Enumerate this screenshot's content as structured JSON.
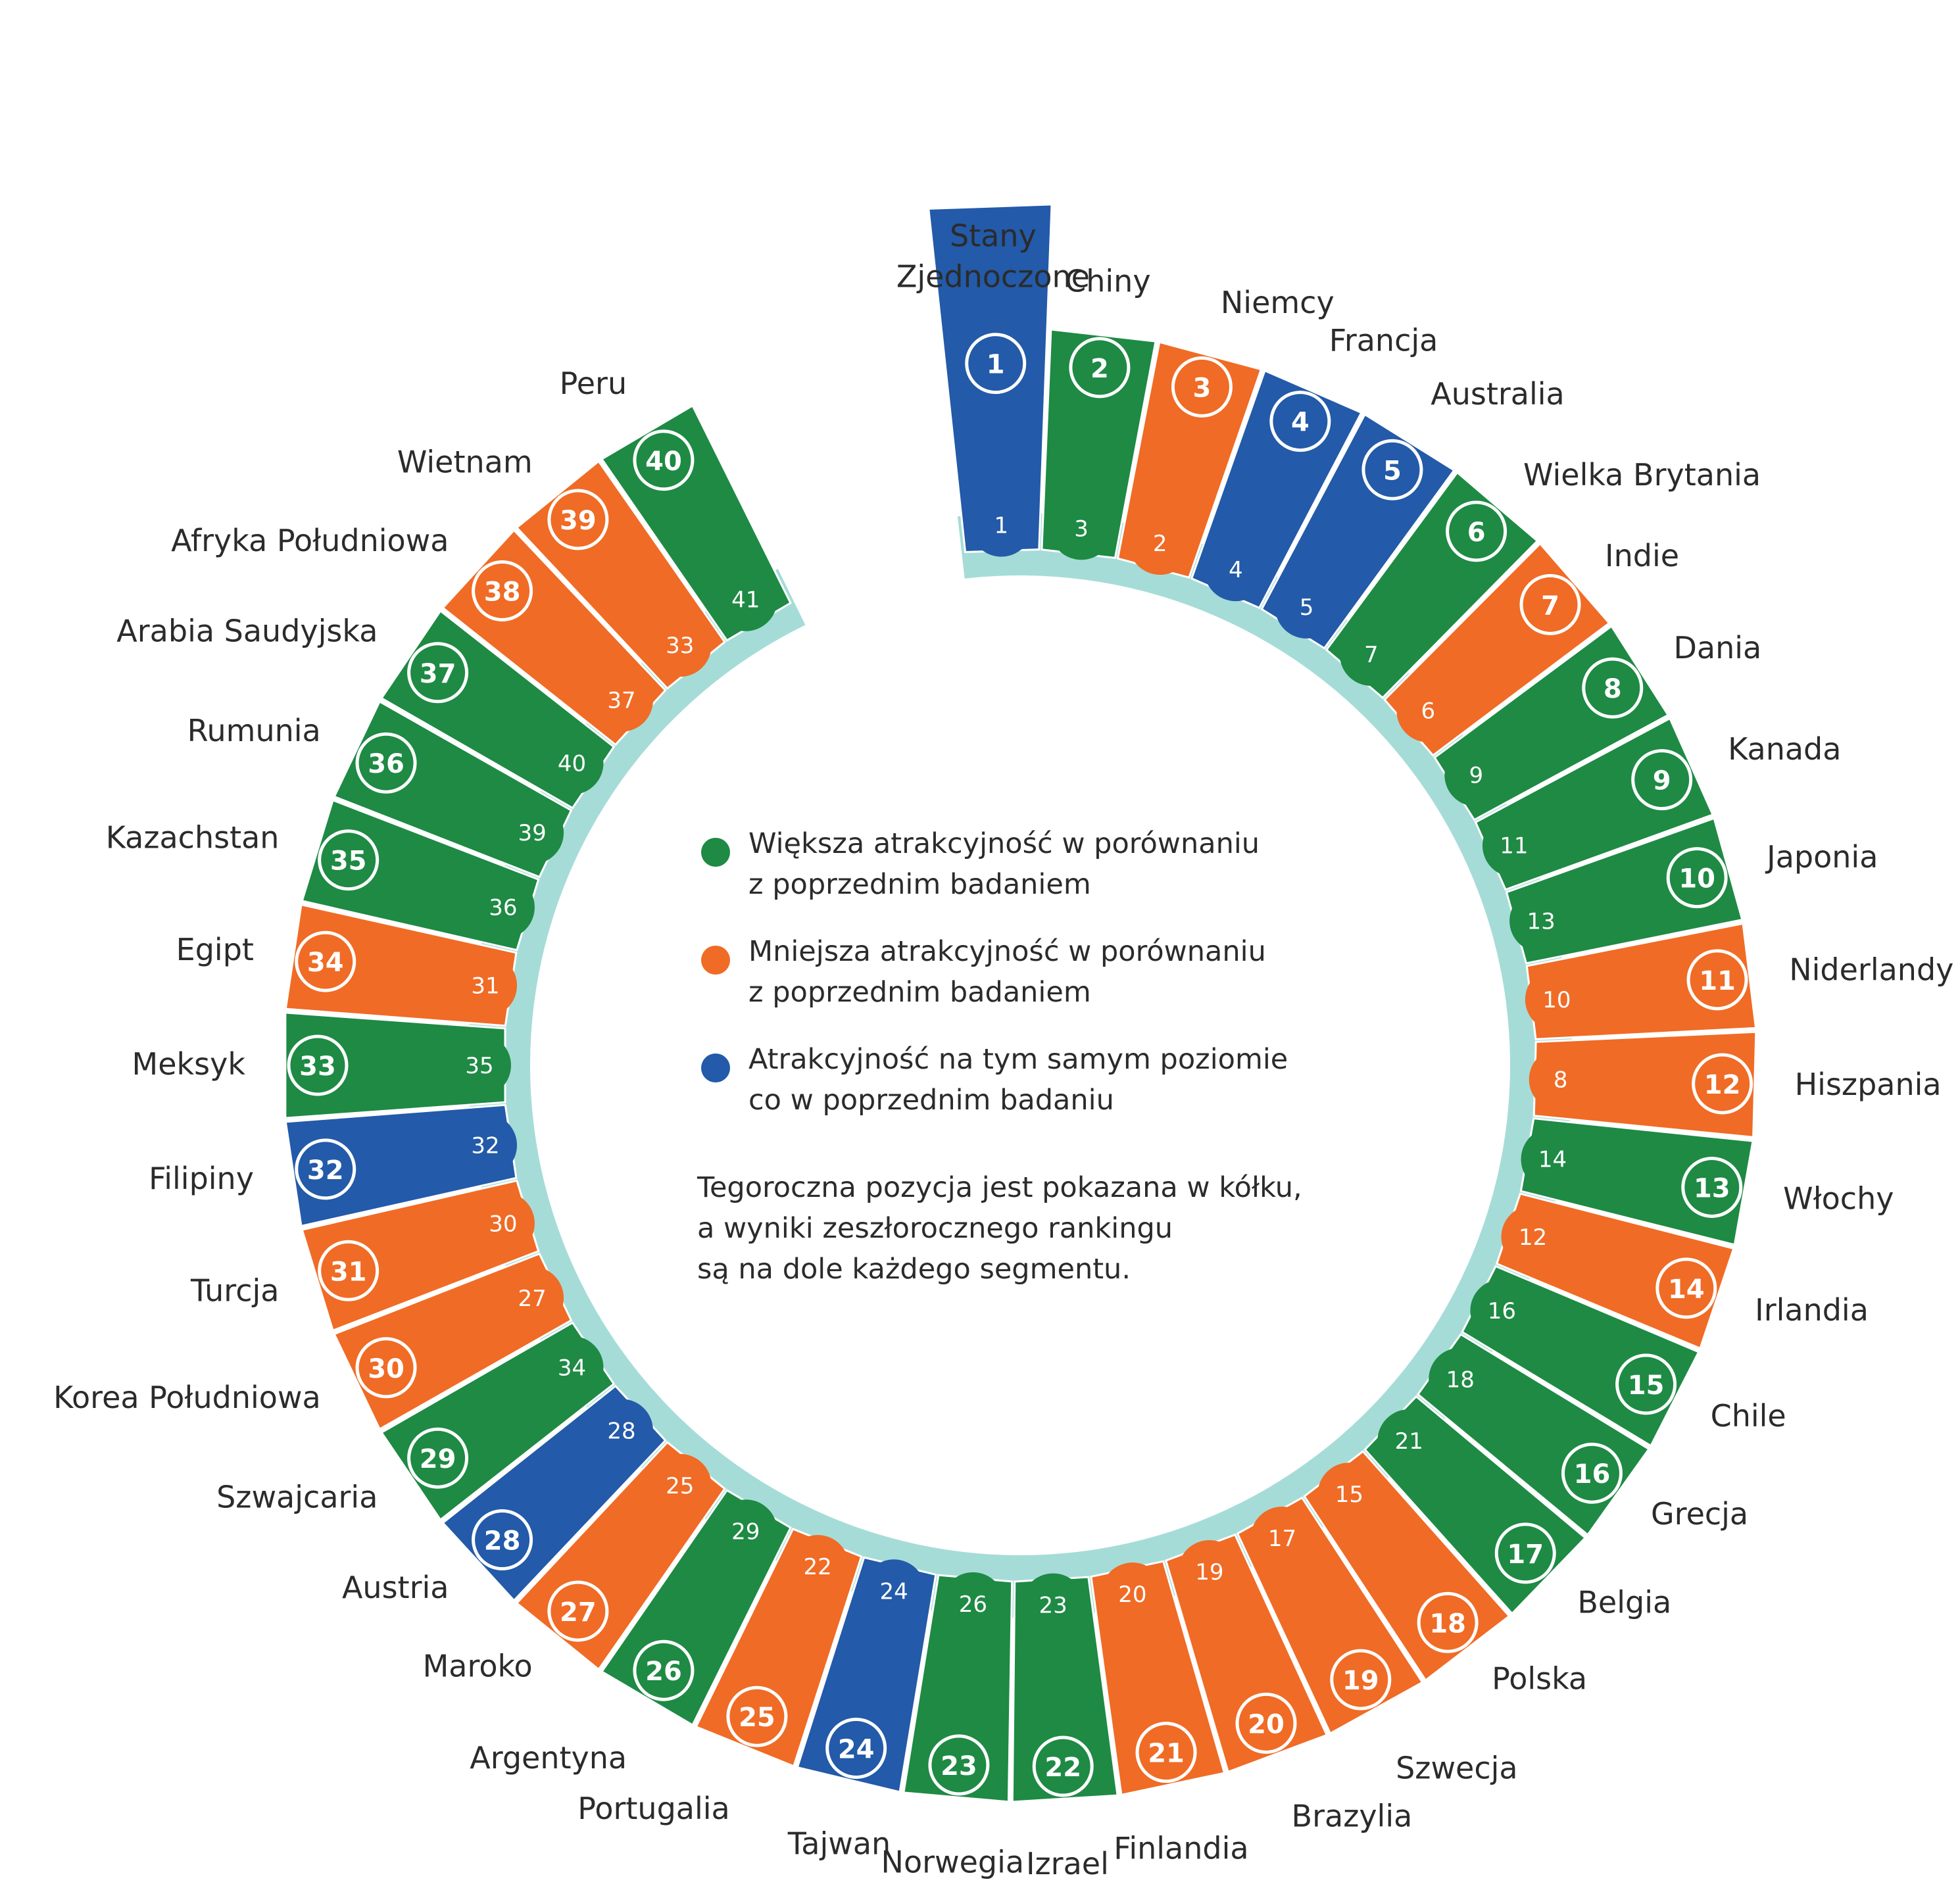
{
  "colors": {
    "up": "#1e8a44",
    "down": "#f06b25",
    "same": "#235aa9",
    "ring": "#a6dcd8",
    "text": "#2b2b2b"
  },
  "legend": {
    "up": "Większa atrakcyjność w porównaniu\nz poprzednim badaniem",
    "down": "Mniejsza atrakcyjność w porównaniu\nz poprzednim badaniem",
    "same": "Atrakcyjność na tym samym poziomie\nco w poprzednim badaniu"
  },
  "note": "Tegoroczna pozycja jest pokazana w kółku,\na wyniki zeszłorocznego rankingu\nsą na dole każdego segmentu.",
  "chart_data": {
    "type": "radial-bar",
    "series_fields": [
      "country",
      "rank_current",
      "rank_previous",
      "trend"
    ],
    "items": [
      {
        "country": "Stany\nZjednoczone",
        "rank": "1",
        "prev": "1",
        "trend": "same"
      },
      {
        "country": "Chiny",
        "rank": "2",
        "prev": "3",
        "trend": "up"
      },
      {
        "country": "Niemcy",
        "rank": "3",
        "prev": "2",
        "trend": "down"
      },
      {
        "country": "Francja",
        "rank": "4",
        "prev": "4",
        "trend": "same"
      },
      {
        "country": "Australia",
        "rank": "5",
        "prev": "5",
        "trend": "same"
      },
      {
        "country": "Wielka Brytania",
        "rank": "6",
        "prev": "7",
        "trend": "up"
      },
      {
        "country": "Indie",
        "rank": "7",
        "prev": "6",
        "trend": "down"
      },
      {
        "country": "Dania",
        "rank": "8",
        "prev": "9",
        "trend": "up"
      },
      {
        "country": "Kanada",
        "rank": "9",
        "prev": "11",
        "trend": "up"
      },
      {
        "country": "Japonia",
        "rank": "10",
        "prev": "13",
        "trend": "up"
      },
      {
        "country": "Niderlandy",
        "rank": "11",
        "prev": "10",
        "trend": "down"
      },
      {
        "country": "Hiszpania",
        "rank": "12",
        "prev": "8",
        "trend": "down"
      },
      {
        "country": "Włochy",
        "rank": "13",
        "prev": "14",
        "trend": "up"
      },
      {
        "country": "Irlandia",
        "rank": "14",
        "prev": "12",
        "trend": "down"
      },
      {
        "country": "Chile",
        "rank": "15",
        "prev": "16",
        "trend": "up"
      },
      {
        "country": "Grecja",
        "rank": "16",
        "prev": "18",
        "trend": "up"
      },
      {
        "country": "Belgia",
        "rank": "17",
        "prev": "21",
        "trend": "up"
      },
      {
        "country": "Polska",
        "rank": "18",
        "prev": "15",
        "trend": "down"
      },
      {
        "country": "Szwecja",
        "rank": "19",
        "prev": "17",
        "trend": "down"
      },
      {
        "country": "Brazylia",
        "rank": "20",
        "prev": "19",
        "trend": "down"
      },
      {
        "country": "Finlandia",
        "rank": "21",
        "prev": "20",
        "trend": "down"
      },
      {
        "country": "Izrael",
        "rank": "22",
        "prev": "23",
        "trend": "up"
      },
      {
        "country": "Norwegia",
        "rank": "23",
        "prev": "26",
        "trend": "up"
      },
      {
        "country": "Tajwan",
        "rank": "24",
        "prev": "24",
        "trend": "same"
      },
      {
        "country": "Portugalia",
        "rank": "25",
        "prev": "22",
        "trend": "down"
      },
      {
        "country": "Argentyna",
        "rank": "26",
        "prev": "29",
        "trend": "up"
      },
      {
        "country": "Maroko",
        "rank": "27",
        "prev": "25",
        "trend": "down"
      },
      {
        "country": "Austria",
        "rank": "28",
        "prev": "28",
        "trend": "same"
      },
      {
        "country": "Szwajcaria",
        "rank": "29",
        "prev": "34",
        "trend": "up"
      },
      {
        "country": "Korea Południowa",
        "rank": "30",
        "prev": "27",
        "trend": "down"
      },
      {
        "country": "Turcja",
        "rank": "31",
        "prev": "30",
        "trend": "down"
      },
      {
        "country": "Filipiny",
        "rank": "32",
        "prev": "32",
        "trend": "same"
      },
      {
        "country": "Meksyk",
        "rank": "33",
        "prev": "35",
        "trend": "up"
      },
      {
        "country": "Egipt",
        "rank": "34",
        "prev": "31",
        "trend": "down"
      },
      {
        "country": "Kazachstan",
        "rank": "35",
        "prev": "36",
        "trend": "up"
      },
      {
        "country": "Rumunia",
        "rank": "36",
        "prev": "39",
        "trend": "up"
      },
      {
        "country": "Arabia Saudyjska",
        "rank": "37",
        "prev": "40",
        "trend": "up"
      },
      {
        "country": "Afryka Południowa",
        "rank": "38",
        "prev": "37",
        "trend": "down"
      },
      {
        "country": "Wietnam",
        "rank": "39",
        "prev": "33",
        "trend": "down"
      },
      {
        "country": "Peru",
        "rank": "40",
        "prev": "41",
        "trend": "up"
      }
    ]
  }
}
